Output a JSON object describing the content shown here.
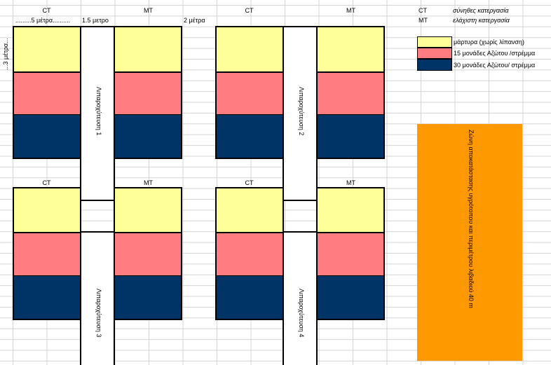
{
  "headers": {
    "col1_a": "CT",
    "col2_a": "MT",
    "col3_a": "CT",
    "col4_a": "MT",
    "col1_b": "CT",
    "col2_b": "MT",
    "col3_b": "CT",
    "col4_b": "MT"
  },
  "dimensions": {
    "width_5m": ".........5 μέτρα..........",
    "gap_1_5m": "1.5 μετρο",
    "gap_2m": "2 μέτρα",
    "height_3m": "...3 μέτρα..."
  },
  "strips": {
    "s1": "Λιπαροχύτευση 1",
    "s2": "Λιπαροχύτευση 2",
    "s3": "Λιπαροχύτευση 3",
    "s4": "Λιπαροχύτευση 4"
  },
  "abbrev_legend": [
    {
      "code": "CT",
      "text": "σύνηθες κατεργασία"
    },
    {
      "code": "MT",
      "text": "ελάχιστη κατεργασία"
    }
  ],
  "color_legend": [
    {
      "color": "#ffff99",
      "text": "μάρτυρα (χωρίς λίπανση)"
    },
    {
      "color": "#ff7c80",
      "text": "15 μονάδες Αζώτου /στρέμμα"
    },
    {
      "color": "#003366",
      "text": "30 μονάδες Αζώτου/ στρέμμα"
    }
  ],
  "buffer_zone": {
    "text": "Ζώνη αποκατάστασης υγρότοπου και περιμέτρου λιβαδιού 40 m",
    "color": "#ff9900"
  },
  "colors": {
    "yellow": "#ffff99",
    "pink": "#ff7c80",
    "navy": "#003366",
    "orange": "#ff9900"
  }
}
